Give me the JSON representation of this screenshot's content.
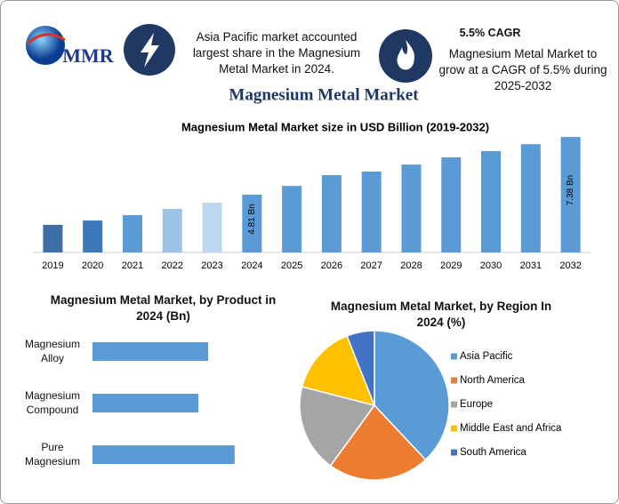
{
  "header": {
    "logo": "MMR",
    "note": "Asia Pacific market accounted largest share in the Magnesium Metal Market in 2024.",
    "cagr_title": "5.5% CAGR",
    "cagr_text": "Magnesium Metal Market to grow at a CAGR of 5.5% during 2025-2032",
    "title": "Magnesium Metal Market"
  },
  "chart_data": [
    {
      "type": "bar",
      "title": "Magnesium Metal Market size in USD Billion (2019-2032)",
      "categories": [
        "2019",
        "2020",
        "2021",
        "2022",
        "2023",
        "2024",
        "2025",
        "2026",
        "2027",
        "2028",
        "2029",
        "2030",
        "2031",
        "2032"
      ],
      "values": [
        3.47,
        3.66,
        3.9,
        4.18,
        4.45,
        4.81,
        5.2,
        5.68,
        5.84,
        6.15,
        6.47,
        6.75,
        7.06,
        7.38
      ],
      "value_labels": [
        null,
        null,
        null,
        null,
        null,
        "4.81 Bn",
        null,
        null,
        null,
        null,
        null,
        null,
        null,
        "7.38 Bn"
      ],
      "colors": [
        "#3d6fa6",
        "#3d79b8",
        "#5b9bd5",
        "#9dc3e6",
        "#bdd7ee",
        "#5b9bd5",
        "#5b9bd5",
        "#5b9bd5",
        "#5b9bd5",
        "#5b9bd5",
        "#5b9bd5",
        "#5b9bd5",
        "#5b9bd5",
        "#5b9bd5"
      ],
      "ylim": [
        2.24,
        7.62
      ]
    },
    {
      "type": "hbar",
      "title": "Magnesium Metal Market, by Product in 2024 (Bn)",
      "categories": [
        "Magnesium Alloy",
        "Magnesium Compound",
        "Pure Magnesium"
      ],
      "values": [
        1.53,
        1.4,
        1.88
      ],
      "color": "#5b9bd5",
      "xlim": [
        0,
        2.2
      ]
    },
    {
      "type": "pie",
      "title": "Magnesium Metal Market, by Region In 2024 (%)",
      "categories": [
        "Asia Pacific",
        "North America",
        "Europe",
        "Middle East and Africa",
        "South America"
      ],
      "values": [
        38,
        22,
        19,
        15,
        6
      ],
      "colors": [
        "#5b9bd5",
        "#ed7d31",
        "#a5a5a5",
        "#ffc000",
        "#4472c4"
      ]
    }
  ]
}
